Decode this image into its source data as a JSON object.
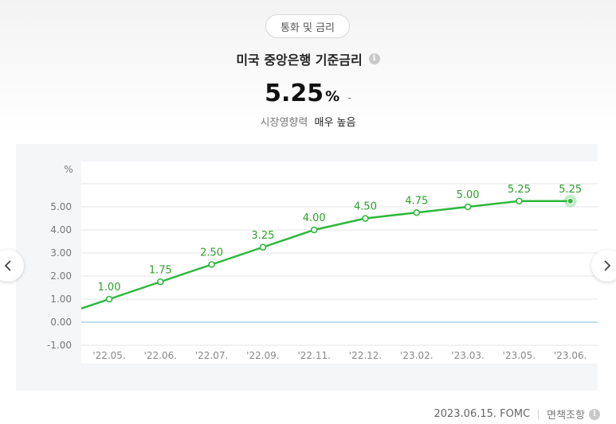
{
  "category_pill": "통화 및 금리",
  "title": "미국 중앙은행 기준금리",
  "current": {
    "value": "5.25",
    "unit": "%",
    "change": "-"
  },
  "influence": {
    "label": "시장영향력",
    "value": "매우 높음"
  },
  "footer": {
    "source": "2023.06.15. FOMC",
    "disclaimer": "면책조항"
  },
  "colors": {
    "line": "#2db83d",
    "label": "#2ca02c",
    "zero_line": "#a8d4e6",
    "grid": "#e4e6ea"
  },
  "chart_data": {
    "type": "line",
    "ylabel": "%",
    "ylim": [
      -1.0,
      6.0
    ],
    "yticks": [
      "5.00",
      "4.00",
      "3.00",
      "2.00",
      "1.00",
      "0.00",
      "-1.00"
    ],
    "ytick_values": [
      5,
      4,
      3,
      2,
      1,
      0,
      -1
    ],
    "categories": [
      "'22.05.",
      "'22.06.",
      "'22.07.",
      "'22.09.",
      "'22.11.",
      "'22.12.",
      "'23.02.",
      "'23.03.",
      "'23.05.",
      "'23.06."
    ],
    "values": [
      1.0,
      1.75,
      2.5,
      3.25,
      4.0,
      4.5,
      4.75,
      5.0,
      5.25,
      5.25
    ],
    "value_labels": [
      "1.00",
      "1.75",
      "2.50",
      "3.25",
      "4.00",
      "4.50",
      "4.75",
      "5.00",
      "5.25",
      "5.25"
    ],
    "grid": true,
    "highlight_last": true
  }
}
